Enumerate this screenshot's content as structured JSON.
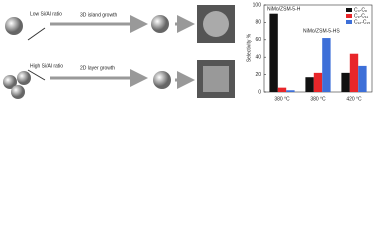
{
  "diagram": {
    "low_label": "Low Si/Al ratio",
    "high_label": "High Si/Al ratio",
    "top_arrow": "3D island growth",
    "bottom_arrow": "2D layer growth"
  },
  "chart_data": {
    "type": "bar",
    "y_label": "Selectivity %",
    "categories": [
      "380 °C",
      "380 °C",
      "420 °C"
    ],
    "annotations": [
      "NiMo/ZSM-5-H",
      "NiMo/ZSM-5-HS"
    ],
    "series": [
      {
        "name": "C₄-C₈",
        "color": "#111111",
        "values": [
          90,
          17,
          22
        ]
      },
      {
        "name": "C₉-C₁₁",
        "color": "#e8262a",
        "values": [
          5,
          22,
          44
        ]
      },
      {
        "name": "C₁₂-C₁₅",
        "color": "#3d6fd8",
        "values": [
          2,
          62,
          30
        ]
      }
    ],
    "ylim": [
      0,
      100
    ],
    "yticks": [
      0,
      20,
      40,
      60,
      80,
      100
    ],
    "legend": "upper-right"
  }
}
